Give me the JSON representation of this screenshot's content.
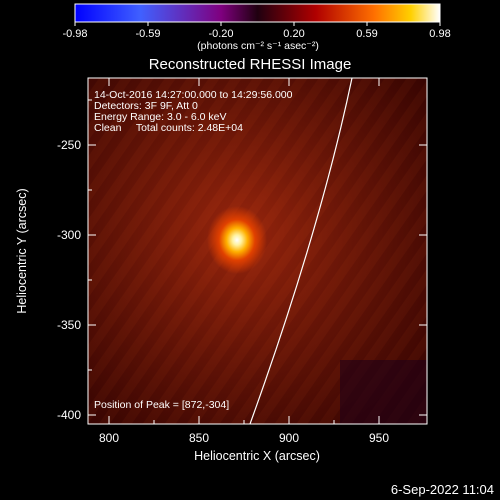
{
  "colorbar": {
    "ticks": [
      "-0.98",
      "-0.59",
      "-0.20",
      "0.20",
      "0.59",
      "0.98"
    ],
    "units": "(photons cm⁻² s⁻¹ asec⁻²)"
  },
  "title": "Reconstructed RHESSI Image",
  "info": {
    "line1": "14-Oct-2016 14:27:00.000 to 14:29:56.000",
    "line2": "Detectors: 3F 9F, Att 0",
    "line3": "Energy Range: 3.0 - 6.0 keV",
    "line4": "Clean     Total counts: 2.48E+04"
  },
  "peak_label": "Position of Peak = [872,-304]",
  "axes": {
    "xlabel": "Heliocentric X (arcsec)",
    "ylabel": "Heliocentric Y (arcsec)",
    "xticks": [
      "800",
      "850",
      "900",
      "950"
    ],
    "yticks": [
      "-250",
      "-300",
      "-350",
      "-400"
    ]
  },
  "footer_date": "6-Sep-2022 11:04",
  "colors": {
    "background": "#000000",
    "frame": "#ffffff",
    "limb": "#ffffff"
  }
}
